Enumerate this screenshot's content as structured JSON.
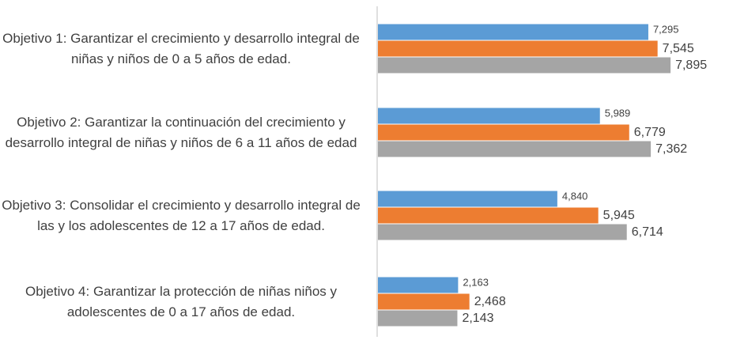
{
  "chart_data": {
    "type": "bar",
    "orientation": "horizontal",
    "categories": [
      "Objetivo 1: Garantizar el crecimiento y desarrollo integral de niñas y niños de 0 a 5 años de edad.",
      "Objetivo 2: Garantizar la continuación del crecimiento y desarrollo integral de niñas y niños de 6 a 11 años de edad",
      "Objetivo 3: Consolidar el crecimiento y desarrollo integral de las y los adolescentes de 12 a 17 años de edad.",
      "Objetivo 4: Garantizar la protección de niñas niños y adolescentes de 0 a 17 años de edad."
    ],
    "series": [
      {
        "color": "#5b9bd5",
        "values": [
          7295,
          5989,
          4840,
          2163
        ],
        "value_labels": [
          "7,295",
          "5,989",
          "4,840",
          "2,163"
        ]
      },
      {
        "color": "#ed7d31",
        "values": [
          7545,
          6779,
          5945,
          2468
        ],
        "value_labels": [
          "7,545",
          "6,779",
          "5,945",
          "2,468"
        ]
      },
      {
        "color": "#a5a5a5",
        "values": [
          7895,
          7362,
          6714,
          2143
        ],
        "value_labels": [
          "7,895",
          "7,362",
          "6,714",
          "2,143"
        ]
      }
    ],
    "xlim": [
      0,
      8000
    ]
  }
}
